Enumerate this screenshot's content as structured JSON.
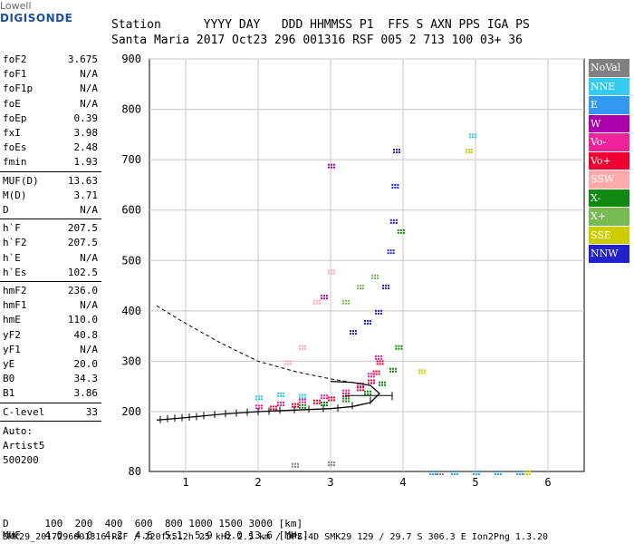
{
  "logo": {
    "top": "Lowell",
    "bottom": "DIGISONDE"
  },
  "header": {
    "labels": "Station      YYYY DAY   DDD HHMMSS P1  FFS S AXN PPS IGA PS",
    "values": "Santa Maria 2017 Oct23 296 001316 RSF 005 2 713 100 03+ 36"
  },
  "params": {
    "group1": [
      {
        "name": "foF2",
        "value": "3.675"
      },
      {
        "name": "foF1",
        "value": "N/A"
      },
      {
        "name": "foF1p",
        "value": "N/A"
      },
      {
        "name": "foE",
        "value": "N/A"
      },
      {
        "name": "foEp",
        "value": "0.39"
      },
      {
        "name": "fxI",
        "value": "3.98"
      },
      {
        "name": "foEs",
        "value": "2.48"
      },
      {
        "name": "fmin",
        "value": "1.93"
      }
    ],
    "group2": [
      {
        "name": "MUF(D)",
        "value": "13.63"
      },
      {
        "name": "M(D)",
        "value": "3.71"
      },
      {
        "name": "D",
        "value": "N/A"
      }
    ],
    "group3": [
      {
        "name": "h`F",
        "value": "207.5"
      },
      {
        "name": "h`F2",
        "value": "207.5"
      },
      {
        "name": "h`E",
        "value": "N/A"
      },
      {
        "name": "h`Es",
        "value": "102.5"
      }
    ],
    "group4": [
      {
        "name": "hmF2",
        "value": "236.0"
      },
      {
        "name": "hmF1",
        "value": "N/A"
      },
      {
        "name": "hmE",
        "value": "110.0"
      },
      {
        "name": "yF2",
        "value": "40.8"
      },
      {
        "name": "yF1",
        "value": "N/A"
      },
      {
        "name": "yE",
        "value": "20.0"
      },
      {
        "name": "B0",
        "value": "34.3"
      },
      {
        "name": "B1",
        "value": "3.86"
      }
    ],
    "clevel": {
      "name": "C-level",
      "value": "33"
    },
    "auto": [
      "Auto:",
      "Artist5",
      "500200"
    ]
  },
  "legend": [
    {
      "label": "NoVal",
      "color": "#808080"
    },
    {
      "label": "NNE",
      "color": "#33ccee"
    },
    {
      "label": "E",
      "color": "#3399ee"
    },
    {
      "label": "W",
      "color": "#aa00aa"
    },
    {
      "label": "Vo-",
      "color": "#ee2299"
    },
    {
      "label": "Vo+",
      "color": "#ee0033"
    },
    {
      "label": "SSW",
      "color": "#ffaaaa"
    },
    {
      "label": "X-",
      "color": "#118811"
    },
    {
      "label": "X+",
      "color": "#77bb55"
    },
    {
      "label": "SSE",
      "color": "#cccc00"
    },
    {
      "label": "NNW",
      "color": "#2222cc"
    }
  ],
  "muf_table": {
    "d_label": "D",
    "d_values": "100  200  400  600  800 1000 1500 3000 [km]",
    "muf_label": "MUF",
    "muf_values": "4.0  4.0  4.2  4.6  5.1  5.9  8.0 13.6 [MHz]"
  },
  "footer": "SMK29_2017296001316.RSF / 220fx512h 25 kHz 2.5 km / DPS-4D SMK29 129 / 29.7 S 306.3 E Ion2Png 1.3.20",
  "chart_data": {
    "type": "scatter",
    "xlim": [
      0.5,
      6.5
    ],
    "ylim": [
      80,
      900
    ],
    "xticks": [
      "1",
      "2",
      "3",
      "4",
      "5",
      "6"
    ],
    "yticks": [
      "80",
      "200",
      "300",
      "400",
      "500",
      "600",
      "700",
      "800",
      "900"
    ],
    "grid": true,
    "series": [
      {
        "name": "Vo+",
        "color": "#ee0033",
        "x": [
          2.2,
          2.5,
          2.8,
          3.0,
          3.2,
          3.4,
          3.55,
          3.62,
          3.67
        ],
        "y": [
          210,
          215,
          222,
          228,
          236,
          248,
          262,
          280,
          300
        ]
      },
      {
        "name": "Vo-",
        "color": "#ee2299",
        "x": [
          2.0,
          2.3,
          2.6,
          2.9,
          3.2,
          3.4,
          3.55,
          3.65
        ],
        "y": [
          212,
          218,
          224,
          232,
          242,
          256,
          275,
          310
        ]
      },
      {
        "name": "X-",
        "color": "#118811",
        "x": [
          2.6,
          2.9,
          3.2,
          3.5,
          3.7,
          3.85,
          3.93,
          3.96
        ],
        "y": [
          213,
          218,
          226,
          240,
          258,
          285,
          330,
          560
        ]
      },
      {
        "name": "NNW",
        "color": "#2222cc",
        "x": [
          3.3,
          3.5,
          3.65,
          3.75,
          3.82,
          3.86,
          3.88,
          3.9
        ],
        "y": [
          360,
          380,
          400,
          450,
          520,
          580,
          650,
          720
        ]
      },
      {
        "name": "SSW",
        "color": "#ffaaaa",
        "x": [
          2.4,
          2.6,
          2.8,
          3.0
        ],
        "y": [
          300,
          330,
          420,
          480
        ]
      },
      {
        "name": "X+",
        "color": "#77bb55",
        "x": [
          3.2,
          3.4,
          3.6
        ],
        "y": [
          420,
          450,
          470
        ]
      },
      {
        "name": "NNE",
        "color": "#33ccee",
        "x": [
          2.0,
          2.3,
          2.6,
          4.95
        ],
        "y": [
          230,
          236,
          233,
          750
        ]
      },
      {
        "name": "E",
        "color": "#3399ee",
        "x": [
          4.4,
          4.7,
          5.0,
          5.3,
          5.6
        ],
        "y": [
          80,
          80,
          80,
          80,
          80
        ]
      },
      {
        "name": "SSE",
        "color": "#cccc00",
        "x": [
          4.25,
          4.9,
          5.7
        ],
        "y": [
          282,
          720,
          80
        ]
      },
      {
        "name": "W",
        "color": "#aa00aa",
        "x": [
          3.0,
          2.9
        ],
        "y": [
          690,
          430
        ]
      },
      {
        "name": "NoVal",
        "color": "#808080",
        "x": [
          2.5,
          3.0,
          4.5
        ],
        "y": [
          95,
          98,
          80
        ]
      }
    ],
    "profile": {
      "x": [
        0.6,
        1.0,
        1.5,
        2.0,
        2.5,
        3.0,
        3.3,
        3.55,
        3.675,
        3.55,
        3.3,
        3.0
      ],
      "y": [
        183,
        188,
        195,
        200,
        203,
        206,
        210,
        218,
        236,
        252,
        258,
        260
      ]
    },
    "profile_ticks": {
      "x": [
        0.65,
        0.75,
        0.85,
        0.95,
        1.05,
        1.15,
        1.25,
        1.4,
        1.55,
        1.7,
        1.85,
        2.0,
        2.15,
        2.3,
        2.5,
        2.7,
        2.9,
        3.1,
        3.3,
        3.55,
        3.85
      ],
      "y": [
        184,
        186,
        187,
        188,
        189,
        190,
        192,
        194,
        196,
        197,
        199,
        200,
        201,
        203,
        204,
        205,
        206,
        207,
        212,
        222,
        230
      ]
    },
    "dashed": {
      "x": [
        0.6,
        1.0,
        1.5,
        2.0,
        2.5,
        3.0,
        3.3
      ],
      "y": [
        410,
        375,
        335,
        300,
        280,
        265,
        258
      ]
    }
  }
}
